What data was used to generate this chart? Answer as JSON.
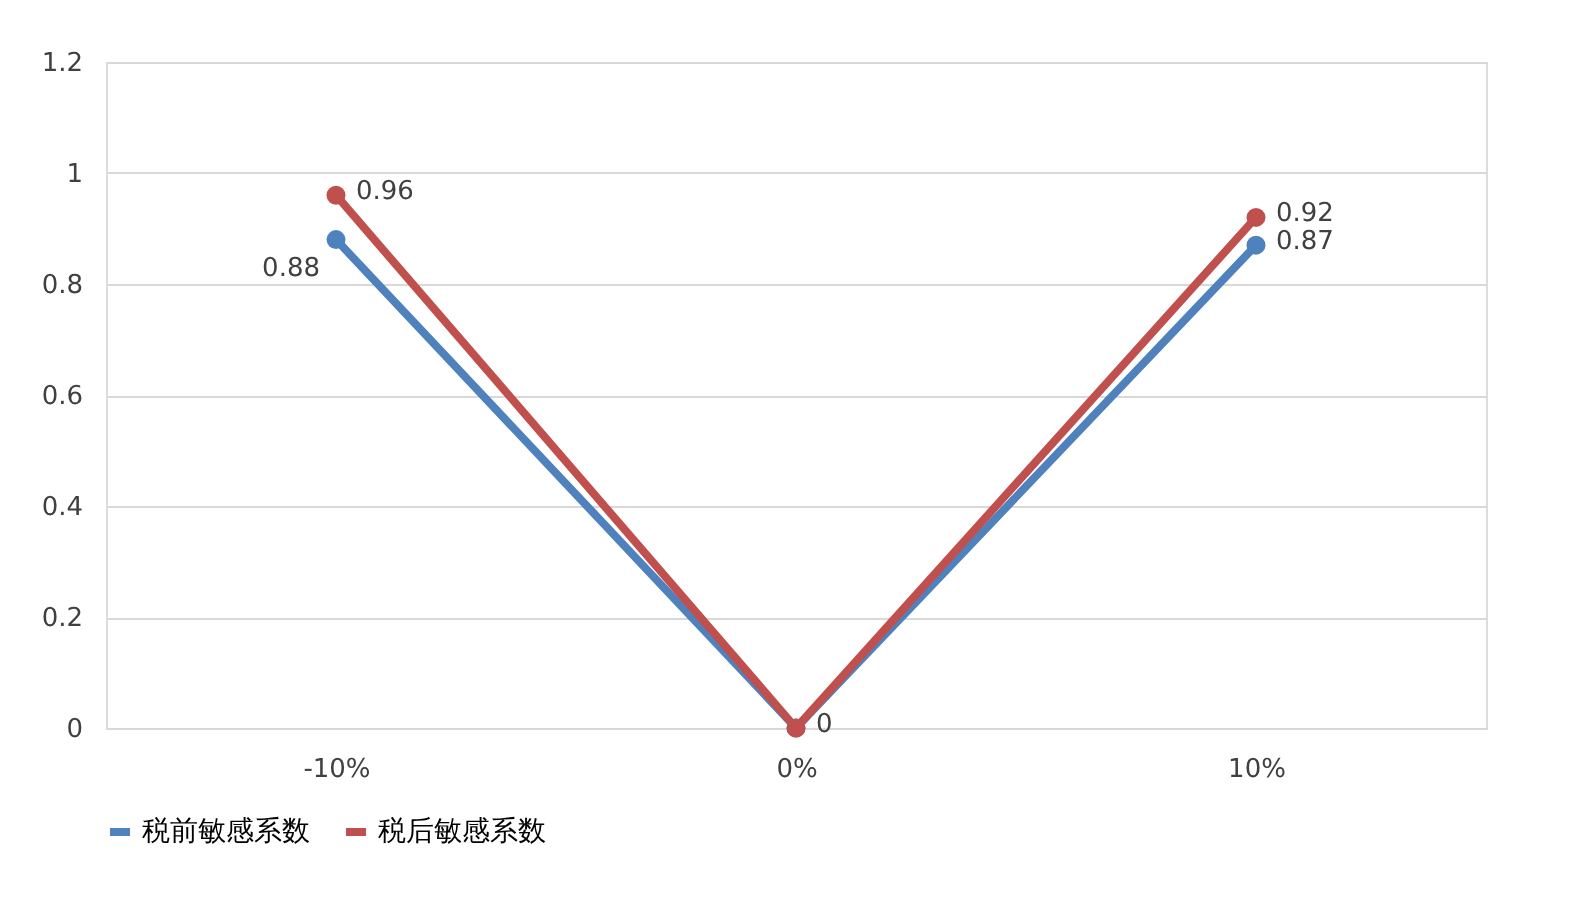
{
  "chart_data": {
    "type": "line",
    "categories": [
      "-10%",
      "0%",
      "10%"
    ],
    "series": [
      {
        "name": "税前敏感系数",
        "color": "#4f81bd",
        "values": [
          0.88,
          0,
          0.87
        ],
        "value_labels": [
          "0.88",
          "0",
          "0.87"
        ]
      },
      {
        "name": "税后敏感系数",
        "color": "#c0504d",
        "values": [
          0.96,
          0,
          0.92
        ],
        "value_labels": [
          "0.96",
          null,
          "0.92"
        ]
      }
    ],
    "ylim": [
      0,
      1.2
    ],
    "yticks": [
      0,
      0.2,
      0.4,
      0.6,
      0.8,
      1,
      1.2
    ],
    "grid": "y",
    "legend": "bottom",
    "marker": "circle",
    "line_style": "solid"
  }
}
